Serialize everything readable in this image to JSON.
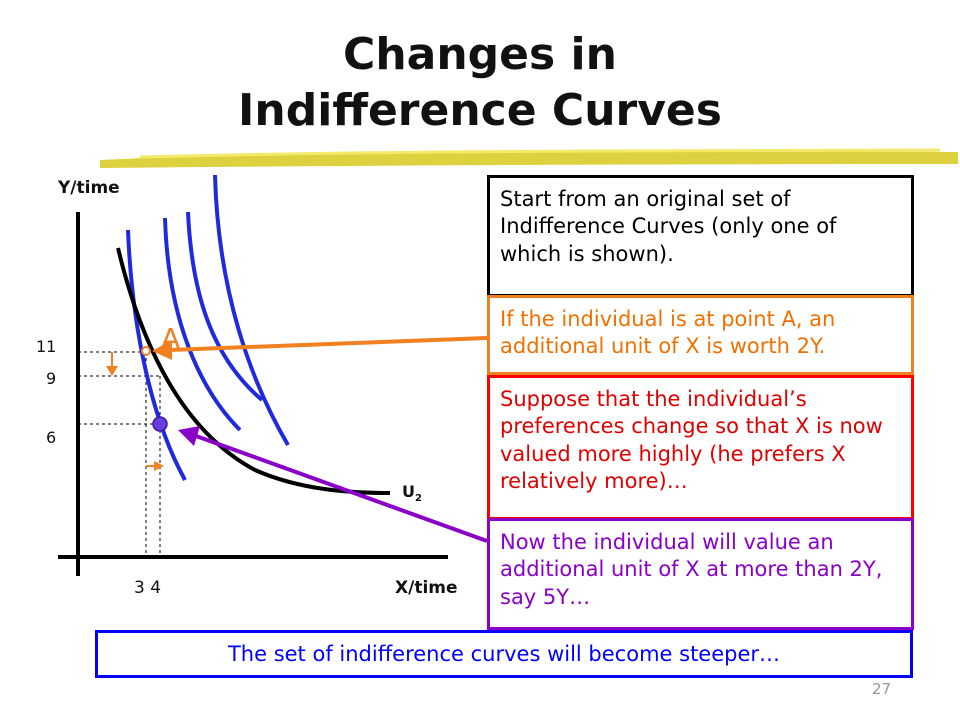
{
  "slide": {
    "title_line1": "Changes in",
    "title_line2": "Indifference Curves",
    "page_number": "27"
  },
  "diagram": {
    "y_axis_label": "Y/time",
    "x_axis_label": "X/time",
    "y_ticks": [
      "11",
      "9",
      "6"
    ],
    "x_ticks": "3 4",
    "curve_label_base": "U",
    "curve_label_sub": "2",
    "point_label": "A"
  },
  "boxes": {
    "original": "Start from an original set of Indifference Curves (only one of which is shown).",
    "point_a": "If the individual is at point A, an additional unit of X is worth 2Y.",
    "suppose": "Suppose that the individual’s preferences change so that X is now valued more highly (he prefers X relatively more)…",
    "now": "Now the individual will value an additional unit of X at more than 2Y, say 5Y…",
    "steeper": "The set of indifference curves will become steeper…"
  },
  "colors": {
    "orange": "#f08020",
    "red": "#ff0000",
    "purple": "#8a00c8",
    "blue": "#0000ff",
    "black": "#000000"
  }
}
